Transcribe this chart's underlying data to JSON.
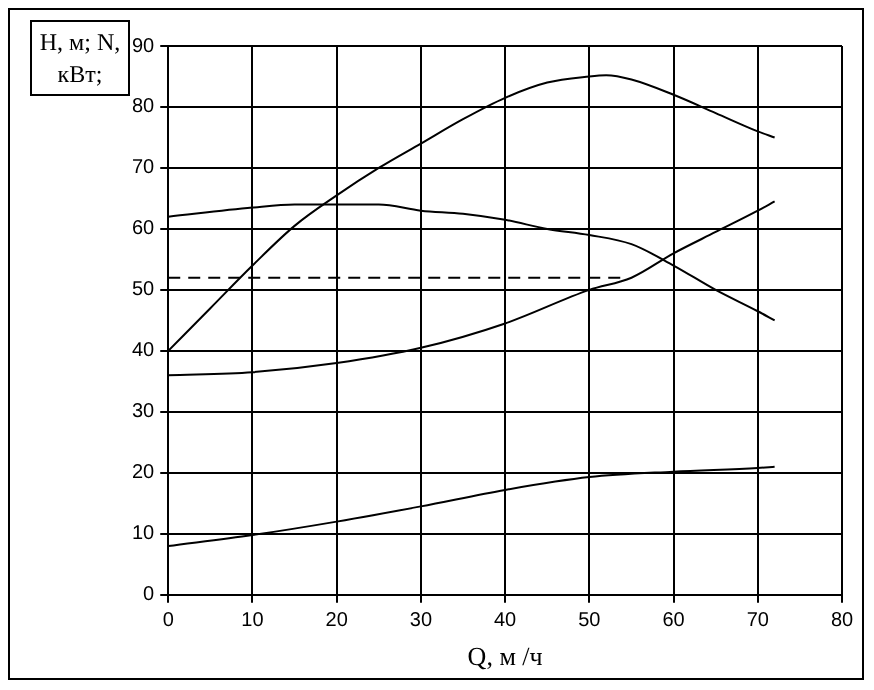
{
  "chart_data": {
    "type": "line",
    "xlabel": "Q, м /ч",
    "ylabel": "H, м; N, кВт;",
    "xlim": [
      0,
      80
    ],
    "xticks": [
      0,
      10,
      20,
      30,
      40,
      50,
      60,
      70,
      80
    ],
    "ylim": [
      0,
      90
    ],
    "yticks": [
      0,
      10,
      20,
      30,
      40,
      50,
      60,
      70,
      80,
      90
    ],
    "grid": true,
    "legend": false,
    "marker": "none",
    "series": [
      {
        "color": "#000000",
        "x": [
          0,
          5,
          10,
          15,
          20,
          25,
          30,
          35,
          40,
          45,
          50,
          52,
          55,
          60,
          65,
          70,
          72
        ],
        "values": [
          40,
          47,
          54,
          60.5,
          65.5,
          70,
          74,
          78,
          81.5,
          84,
          85,
          85.2,
          84.5,
          82,
          79,
          76,
          75
        ]
      },
      {
        "color": "#000000",
        "x": [
          0,
          10,
          15,
          20,
          25,
          30,
          35,
          40,
          45,
          50,
          55,
          60,
          65,
          70,
          72
        ],
        "values": [
          62,
          63.5,
          64,
          64,
          64,
          63,
          62.5,
          61.5,
          60,
          59,
          57.5,
          54,
          50,
          46.5,
          45
        ]
      },
      {
        "color": "#000000",
        "x": [
          0,
          10,
          20,
          30,
          40,
          50,
          55,
          60,
          65,
          70,
          72
        ],
        "values": [
          36,
          36.5,
          38,
          40.5,
          44.5,
          50,
          52,
          56,
          59.5,
          63,
          64.5
        ]
      },
      {
        "color": "#000000",
        "x": [
          0,
          10,
          20,
          30,
          40,
          50,
          60,
          70,
          72
        ],
        "values": [
          8,
          9.8,
          12,
          14.5,
          17.2,
          19.3,
          20.2,
          20.8,
          21
        ]
      },
      {
        "color": "#000000",
        "line_style": "dashed",
        "x": [
          0,
          54
        ],
        "values": [
          52,
          52
        ]
      }
    ]
  }
}
